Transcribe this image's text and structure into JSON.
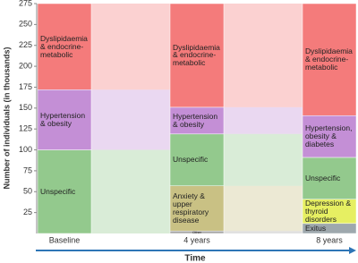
{
  "chart_data": {
    "type": "alluvial",
    "y_label": "Number of individuals (in thousands)",
    "x_label": "Time",
    "ylim": [
      0,
      275
    ],
    "yticks": [
      25,
      50,
      75,
      100,
      125,
      150,
      175,
      200,
      225,
      250,
      275
    ],
    "stages": [
      {
        "name": "Baseline",
        "nodes": [
          {
            "name": "Unspecific",
            "value": 100,
            "color": "#93c98d"
          },
          {
            "name": "Hypertension & obesity",
            "value": 72,
            "color": "#c48fd6"
          },
          {
            "name": "Dyslipidaemia & endocrine-metabolic",
            "value": 103,
            "color": "#f47b7b"
          }
        ]
      },
      {
        "name": "4 years",
        "nodes": [
          {
            "name": "Other",
            "value": 3,
            "color": "#a8a8a8"
          },
          {
            "name": "Anxiety & upper respiratory disease",
            "value": 54,
            "color": "#c9c184"
          },
          {
            "name": "Unspecific",
            "value": 62,
            "color": "#93c98d"
          },
          {
            "name": "Hypertension & obesity",
            "value": 32,
            "color": "#c48fd6"
          },
          {
            "name": "Dyslipidaemia & endocrine-metabolic",
            "value": 124,
            "color": "#f47b7b"
          }
        ]
      },
      {
        "name": "8 years",
        "nodes": [
          {
            "name": "Exitus",
            "value": 12,
            "color": "#9ea8ad"
          },
          {
            "name": "Depression & thyroid disorders",
            "value": 29,
            "color": "#e6ef62"
          },
          {
            "name": "Unspecific",
            "value": 50,
            "color": "#93c98d"
          },
          {
            "name": "Hypertension, obesity & diabetes",
            "value": 50,
            "color": "#c48fd6"
          },
          {
            "name": "Dyslipidaemia & endocrine-metabolic",
            "value": 134,
            "color": "#f47b7b"
          }
        ]
      }
    ]
  }
}
